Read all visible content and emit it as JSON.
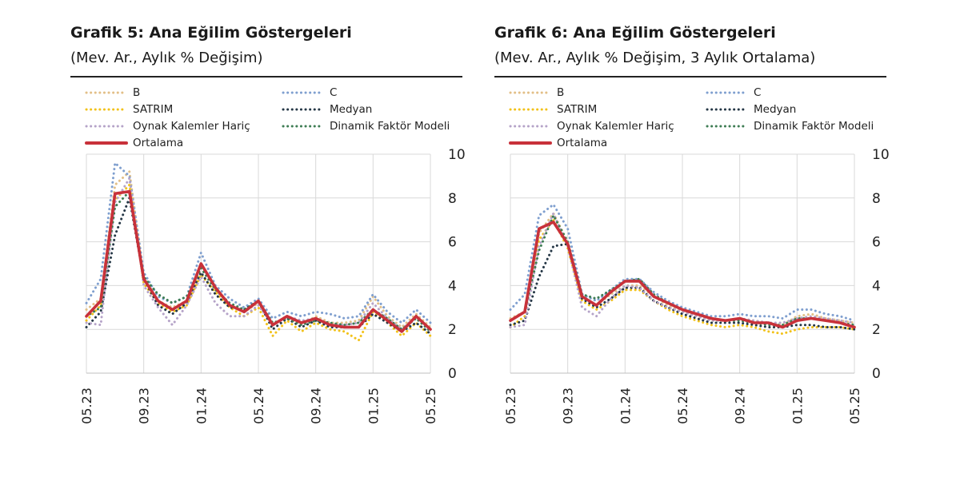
{
  "chart_data": [
    {
      "type": "line",
      "title": "Grafik 5: Ana Eğilim Göstergeleri",
      "subtitle": "(Mev. Ar., Aylık % Değişim)",
      "ylim": [
        0,
        10
      ],
      "yticks": [
        "0",
        "2",
        "4",
        "6",
        "8",
        "10"
      ],
      "xticks": [
        "05.23",
        "09.23",
        "01.24",
        "05.24",
        "09.24",
        "01.25",
        "05.25"
      ],
      "x": [
        "05.23",
        "06.23",
        "07.23",
        "08.23",
        "09.23",
        "10.23",
        "11.23",
        "12.23",
        "01.24",
        "02.24",
        "03.24",
        "04.24",
        "05.24",
        "06.24",
        "07.24",
        "08.24",
        "09.24",
        "10.24",
        "11.24",
        "12.24",
        "01.25",
        "02.25",
        "03.25",
        "04.25",
        "05.25"
      ],
      "series": [
        {
          "name": "B",
          "color": "#e2bf87",
          "style": "dotted",
          "values": [
            2.9,
            3.4,
            8.6,
            9.2,
            4.4,
            3.3,
            3.0,
            3.3,
            4.8,
            3.9,
            3.1,
            2.8,
            3.2,
            2.2,
            2.6,
            2.2,
            2.6,
            2.3,
            2.3,
            2.4,
            3.5,
            2.6,
            2.1,
            2.7,
            2.1
          ]
        },
        {
          "name": "C",
          "color": "#7f9fcf",
          "style": "dotted",
          "values": [
            3.2,
            4.3,
            9.6,
            9.0,
            4.6,
            3.5,
            3.2,
            3.5,
            5.5,
            4.0,
            3.4,
            3.0,
            3.4,
            2.5,
            2.8,
            2.6,
            2.8,
            2.7,
            2.5,
            2.6,
            3.6,
            2.8,
            2.3,
            2.9,
            2.3
          ]
        },
        {
          "name": "SATRIM",
          "color": "#f2c21a",
          "style": "dotted",
          "values": [
            2.4,
            3.1,
            7.9,
            8.6,
            4.1,
            3.2,
            2.8,
            3.1,
            4.5,
            3.7,
            3.0,
            2.6,
            3.0,
            1.7,
            2.4,
            1.9,
            2.3,
            2.0,
            1.9,
            1.5,
            2.8,
            2.3,
            1.7,
            2.3,
            1.7
          ]
        },
        {
          "name": "Medyan",
          "color": "#253746",
          "style": "dotted",
          "values": [
            2.1,
            2.8,
            6.3,
            8.0,
            4.3,
            3.1,
            2.7,
            3.2,
            4.6,
            3.6,
            3.0,
            2.9,
            3.3,
            2.0,
            2.5,
            2.1,
            2.4,
            2.1,
            2.1,
            2.1,
            2.7,
            2.3,
            1.9,
            2.3,
            1.8
          ]
        },
        {
          "name": "Oynak Kalemler Hariç",
          "color": "#b5a3c8",
          "style": "dotted",
          "values": [
            2.3,
            2.2,
            7.8,
            8.9,
            4.0,
            3.0,
            2.2,
            3.1,
            4.4,
            3.2,
            2.6,
            2.6,
            3.1,
            2.2,
            2.6,
            2.4,
            2.5,
            2.2,
            2.2,
            2.3,
            3.2,
            2.5,
            2.0,
            2.6,
            2.0
          ]
        },
        {
          "name": "Dinamik Faktör Modeli",
          "color": "#3e7d54",
          "style": "dotted",
          "values": [
            2.6,
            3.0,
            7.6,
            8.3,
            4.4,
            3.6,
            3.2,
            3.5,
            4.8,
            3.8,
            3.2,
            2.9,
            3.3,
            2.3,
            2.5,
            2.2,
            2.4,
            2.3,
            2.2,
            2.3,
            2.9,
            2.5,
            2.0,
            2.5,
            1.9
          ]
        },
        {
          "name": "Ortalama",
          "color": "#c8313a",
          "style": "solid",
          "values": [
            2.6,
            3.3,
            8.2,
            8.3,
            4.3,
            3.3,
            2.9,
            3.3,
            5.0,
            3.9,
            3.1,
            2.8,
            3.3,
            2.2,
            2.6,
            2.3,
            2.5,
            2.2,
            2.1,
            2.1,
            2.9,
            2.4,
            1.9,
            2.6,
            2.0
          ]
        }
      ],
      "legend": [
        {
          "label": "B",
          "series": "B"
        },
        {
          "label": "C",
          "series": "C"
        },
        {
          "label": "SATRIM",
          "series": "SATRIM"
        },
        {
          "label": "Medyan",
          "series": "Medyan"
        },
        {
          "label": "Oynak Kalemler Hariç",
          "series": "Oynak Kalemler Hariç"
        },
        {
          "label": "Dinamik Faktör Modeli",
          "series": "Dinamik Faktör Modeli"
        },
        {
          "label": "Ortalama",
          "series": "Ortalama"
        }
      ]
    },
    {
      "type": "line",
      "title": "Grafik 6: Ana Eğilim Göstergeleri",
      "subtitle": "(Mev. Ar., Aylık % Değişim, 3 Aylık Ortalama)",
      "ylim": [
        0,
        10
      ],
      "yticks": [
        "0",
        "2",
        "4",
        "6",
        "8",
        "10"
      ],
      "xticks": [
        "05.23",
        "09.23",
        "01.24",
        "05.24",
        "09.24",
        "01.25",
        "05.25"
      ],
      "x": [
        "05.23",
        "06.23",
        "07.23",
        "08.23",
        "09.23",
        "10.23",
        "11.23",
        "12.23",
        "01.24",
        "02.24",
        "03.24",
        "04.24",
        "05.24",
        "06.24",
        "07.24",
        "08.24",
        "09.24",
        "10.24",
        "11.24",
        "12.24",
        "01.25",
        "02.25",
        "03.25",
        "04.25",
        "05.25"
      ],
      "series": [
        {
          "name": "B",
          "color": "#e2bf87",
          "style": "dotted",
          "values": [
            2.5,
            2.8,
            6.4,
            7.3,
            6.0,
            3.4,
            3.1,
            3.6,
            4.0,
            4.0,
            3.5,
            3.1,
            2.8,
            2.6,
            2.4,
            2.4,
            2.5,
            2.4,
            2.3,
            2.2,
            2.6,
            2.7,
            2.5,
            2.4,
            2.3
          ]
        },
        {
          "name": "C",
          "color": "#7f9fcf",
          "style": "dotted",
          "values": [
            2.9,
            3.6,
            7.2,
            7.7,
            6.6,
            3.6,
            3.3,
            3.8,
            4.3,
            4.3,
            3.7,
            3.3,
            3.0,
            2.8,
            2.6,
            2.6,
            2.7,
            2.6,
            2.6,
            2.5,
            2.9,
            2.9,
            2.7,
            2.6,
            2.4
          ]
        },
        {
          "name": "SATRIM",
          "color": "#f2c21a",
          "style": "dotted",
          "values": [
            2.1,
            2.6,
            6.1,
            7.0,
            5.7,
            3.3,
            2.9,
            3.3,
            3.8,
            3.8,
            3.3,
            2.9,
            2.6,
            2.4,
            2.2,
            2.1,
            2.2,
            2.1,
            1.9,
            1.8,
            2.0,
            2.1,
            2.1,
            2.1,
            2.0
          ]
        },
        {
          "name": "Medyan",
          "color": "#253746",
          "style": "dotted",
          "values": [
            2.2,
            2.4,
            4.4,
            5.8,
            5.9,
            3.4,
            3.0,
            3.4,
            3.9,
            3.9,
            3.3,
            3.0,
            2.7,
            2.5,
            2.3,
            2.3,
            2.3,
            2.2,
            2.1,
            2.1,
            2.2,
            2.2,
            2.1,
            2.1,
            2.0
          ]
        },
        {
          "name": "Oynak Kalemler Hariç",
          "color": "#b5a3c8",
          "style": "dotted",
          "values": [
            2.1,
            2.2,
            5.8,
            7.3,
            5.8,
            3.0,
            2.6,
            3.4,
            4.0,
            3.9,
            3.3,
            3.0,
            2.8,
            2.6,
            2.4,
            2.4,
            2.5,
            2.4,
            2.3,
            2.3,
            2.5,
            2.6,
            2.5,
            2.4,
            2.3
          ]
        },
        {
          "name": "Dinamik Faktör Modeli",
          "color": "#3e7d54",
          "style": "dotted",
          "values": [
            2.4,
            2.8,
            5.6,
            7.2,
            6.0,
            3.6,
            3.4,
            3.8,
            4.2,
            4.3,
            3.6,
            3.2,
            2.9,
            2.7,
            2.5,
            2.4,
            2.4,
            2.3,
            2.2,
            2.2,
            2.5,
            2.5,
            2.4,
            2.3,
            2.2
          ]
        },
        {
          "name": "Ortalama",
          "color": "#c8313a",
          "style": "solid",
          "values": [
            2.4,
            2.8,
            6.6,
            6.9,
            5.9,
            3.5,
            3.1,
            3.7,
            4.2,
            4.2,
            3.5,
            3.2,
            2.9,
            2.7,
            2.5,
            2.4,
            2.5,
            2.3,
            2.3,
            2.1,
            2.4,
            2.5,
            2.4,
            2.3,
            2.1
          ]
        }
      ],
      "legend": [
        {
          "label": "B",
          "series": "B"
        },
        {
          "label": "C",
          "series": "C"
        },
        {
          "label": "SATRIM",
          "series": "SATRIM"
        },
        {
          "label": "Medyan",
          "series": "Medyan"
        },
        {
          "label": "Oynak Kalemler Hariç",
          "series": "Oynak Kalemler Hariç"
        },
        {
          "label": "Dinamik Faktör Modeli",
          "series": "Dinamik Faktör Modeli"
        },
        {
          "label": "Ortalama",
          "series": "Ortalama"
        }
      ]
    }
  ]
}
